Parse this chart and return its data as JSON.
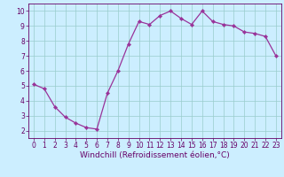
{
  "x": [
    0,
    1,
    2,
    3,
    4,
    5,
    6,
    7,
    8,
    9,
    10,
    11,
    12,
    13,
    14,
    15,
    16,
    17,
    18,
    19,
    20,
    21,
    22,
    23
  ],
  "y": [
    5.1,
    4.8,
    3.6,
    2.9,
    2.5,
    2.2,
    2.1,
    4.5,
    6.0,
    7.8,
    9.3,
    9.1,
    9.7,
    10.0,
    9.5,
    9.1,
    10.0,
    9.3,
    9.1,
    9.0,
    8.6,
    8.5,
    8.3,
    7.0
  ],
  "line_color": "#993399",
  "marker": "D",
  "marker_size": 2.2,
  "bg_color": "#cceeff",
  "grid_color": "#99cccc",
  "xlabel": "Windchill (Refroidissement éolien,°C)",
  "xlabel_color": "#660066",
  "xlim": [
    -0.5,
    23.5
  ],
  "ylim": [
    1.5,
    10.5
  ],
  "yticks": [
    2,
    3,
    4,
    5,
    6,
    7,
    8,
    9,
    10
  ],
  "xticks": [
    0,
    1,
    2,
    3,
    4,
    5,
    6,
    7,
    8,
    9,
    10,
    11,
    12,
    13,
    14,
    15,
    16,
    17,
    18,
    19,
    20,
    21,
    22,
    23
  ],
  "tick_label_size": 5.5,
  "xlabel_size": 6.5
}
